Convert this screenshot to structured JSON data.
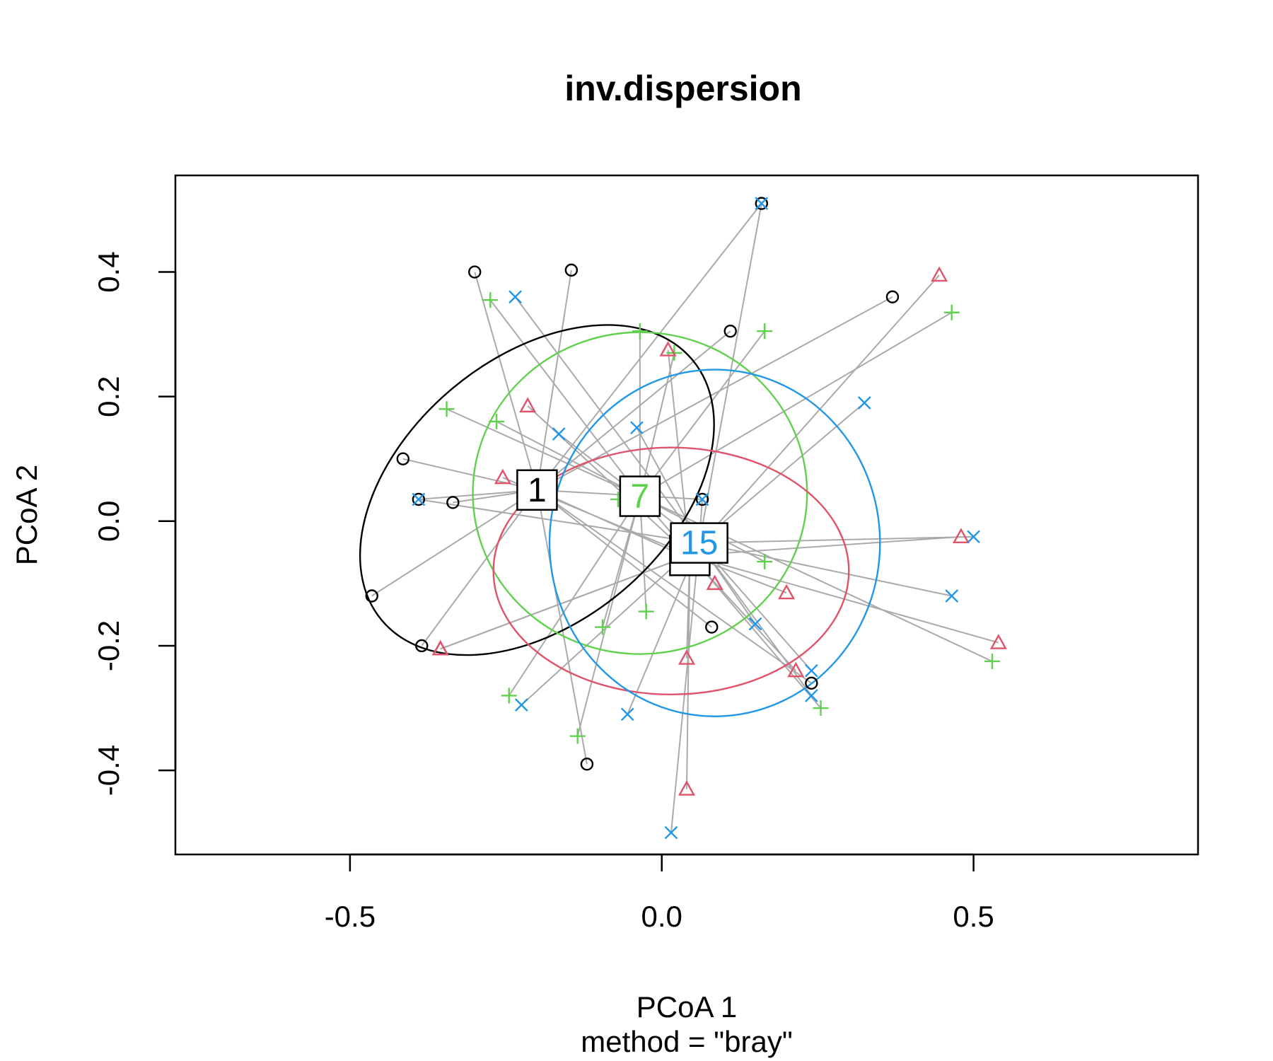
{
  "chart_data": {
    "type": "scatter",
    "title": "inv.dispersion",
    "xlabel": "PCoA 1",
    "sublabel": "method = \"bray\"",
    "ylabel": "PCoA 2",
    "xlim": [
      -0.78,
      0.86
    ],
    "ylim": [
      -0.535,
      0.555
    ],
    "xticks": [
      -0.5,
      0.0,
      0.5
    ],
    "xtick_labels": [
      "-0.5",
      "0.0",
      "0.5"
    ],
    "yticks": [
      -0.4,
      -0.2,
      0.0,
      0.2,
      0.4
    ],
    "ytick_labels": [
      "-0.4",
      "-0.2",
      "0.0",
      "0.2",
      "0.4"
    ],
    "grid": false,
    "spider_color": "#aaaaaa",
    "series": [
      {
        "label": "1",
        "color": "#000000",
        "marker": "circle",
        "centroid": [
          -0.2,
          0.05
        ],
        "ellipse": {
          "center": [
            -0.2,
            0.05
          ],
          "rx": 0.325,
          "ry": 0.212,
          "angle": 40
        },
        "points": [
          [
            -0.3,
            0.4
          ],
          [
            -0.145,
            0.403
          ],
          [
            0.16,
            0.51
          ],
          [
            0.37,
            0.36
          ],
          [
            0.11,
            0.305
          ],
          [
            -0.415,
            0.1
          ],
          [
            -0.39,
            0.035
          ],
          [
            -0.335,
            0.03
          ],
          [
            0.065,
            0.035
          ],
          [
            -0.465,
            -0.12
          ],
          [
            -0.385,
            -0.2
          ],
          [
            0.08,
            -0.17
          ],
          [
            0.24,
            -0.26
          ],
          [
            -0.12,
            -0.39
          ],
          [
            0.045,
            -0.06
          ]
        ]
      },
      {
        "label": "7",
        "color": "#61d04f",
        "marker": "plus",
        "centroid": [
          -0.035,
          0.04
        ],
        "ellipse": {
          "center": [
            -0.035,
            0.045
          ],
          "rx": 0.268,
          "ry": 0.258,
          "angle": 0
        },
        "points": [
          [
            -0.275,
            0.355
          ],
          [
            -0.035,
            0.305
          ],
          [
            0.165,
            0.305
          ],
          [
            0.465,
            0.335
          ],
          [
            0.02,
            0.27
          ],
          [
            -0.345,
            0.18
          ],
          [
            -0.265,
            0.16
          ],
          [
            -0.07,
            0.035
          ],
          [
            0.165,
            -0.065
          ],
          [
            -0.025,
            -0.145
          ],
          [
            -0.095,
            -0.17
          ],
          [
            -0.245,
            -0.28
          ],
          [
            -0.135,
            -0.345
          ],
          [
            0.255,
            -0.3
          ],
          [
            0.53,
            -0.225
          ]
        ]
      },
      {
        "label": "15",
        "color": "#df536b",
        "marker": "triangle",
        "centroid": [
          0.045,
          -0.055
        ],
        "ellipse": {
          "center": [
            0.015,
            -0.08
          ],
          "rx": 0.285,
          "ry": 0.198,
          "angle": 0
        },
        "points": [
          [
            0.445,
            0.395
          ],
          [
            0.01,
            0.275
          ],
          [
            -0.215,
            0.185
          ],
          [
            -0.255,
            0.07
          ],
          [
            0.48,
            -0.025
          ],
          [
            0.085,
            -0.1
          ],
          [
            0.2,
            -0.115
          ],
          [
            -0.355,
            -0.205
          ],
          [
            -0.355,
            -0.205
          ],
          [
            0.54,
            -0.195
          ],
          [
            0.04,
            -0.22
          ],
          [
            0.215,
            -0.24
          ],
          [
            0.04,
            -0.43
          ],
          [
            0.045,
            -0.06
          ],
          [
            0.06,
            -0.05
          ]
        ]
      },
      {
        "label": "15",
        "color": "#2297e6",
        "marker": "cross",
        "centroid": [
          0.06,
          -0.035
        ],
        "ellipse": {
          "center": [
            0.085,
            -0.035
          ],
          "rx": 0.265,
          "ry": 0.278,
          "angle": 0
        },
        "points": [
          [
            0.16,
            0.51
          ],
          [
            -0.235,
            0.36
          ],
          [
            0.325,
            0.19
          ],
          [
            -0.165,
            0.14
          ],
          [
            -0.04,
            0.15
          ],
          [
            0.065,
            0.035
          ],
          [
            -0.39,
            0.035
          ],
          [
            0.5,
            -0.025
          ],
          [
            0.465,
            -0.12
          ],
          [
            0.15,
            -0.165
          ],
          [
            0.24,
            -0.24
          ],
          [
            0.24,
            -0.28
          ],
          [
            -0.225,
            -0.295
          ],
          [
            -0.055,
            -0.31
          ],
          [
            0.015,
            -0.5
          ]
        ]
      }
    ],
    "group_labels": [
      {
        "text": "1",
        "x": -0.2,
        "y": 0.05,
        "color": "#000000"
      },
      {
        "text": "7",
        "x": -0.035,
        "y": 0.04,
        "color": "#61d04f"
      },
      {
        "text": "",
        "x": 0.045,
        "y": -0.055,
        "color": "#000000"
      },
      {
        "text": "15",
        "x": 0.06,
        "y": -0.035,
        "color": "#2297e6"
      }
    ]
  }
}
